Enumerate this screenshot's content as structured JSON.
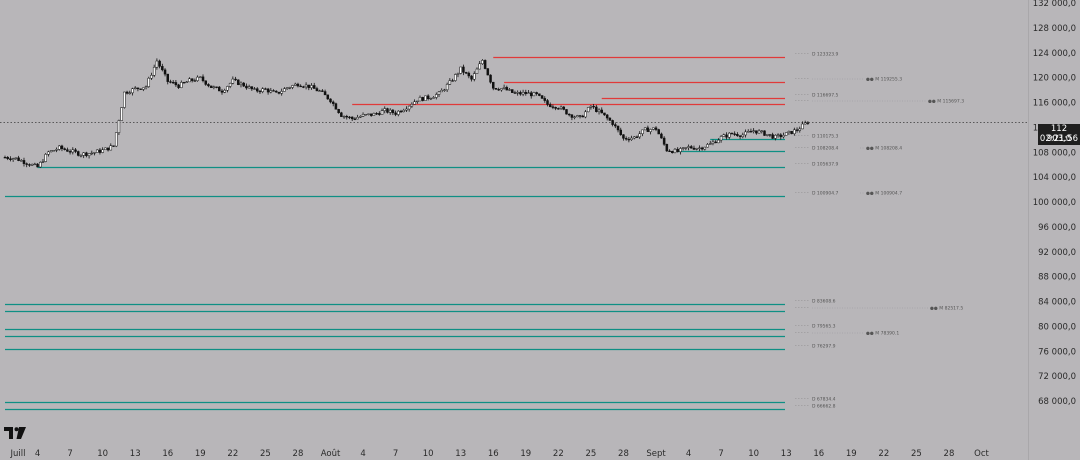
{
  "chart_data": {
    "type": "candlestick",
    "title": "",
    "xlabel": "",
    "ylabel": "",
    "ylim": [
      66000,
      133000
    ],
    "grid": false,
    "x_tick_labels": [
      "Juill",
      "4",
      "7",
      "10",
      "13",
      "16",
      "19",
      "22",
      "25",
      "28",
      "Août",
      "4",
      "7",
      "10",
      "13",
      "16",
      "19",
      "22",
      "25",
      "28",
      "Sept",
      "4",
      "7",
      "10",
      "13",
      "16",
      "19",
      "22",
      "25",
      "28",
      "Oct"
    ],
    "y_tick_labels": [
      "132 000,0",
      "128 000,0",
      "124 000,0",
      "120 000,0",
      "116 000,0",
      "112 000,0",
      "108 000,0",
      "104 000,0",
      "100 000,0",
      "96 000,0",
      "92 000,0",
      "88 000,0",
      "84 000,0",
      "80 000,0",
      "76 000,0",
      "72 000,0",
      "68 000,0"
    ],
    "y_ticks": [
      132000,
      128000,
      124000,
      120000,
      116000,
      112000,
      108000,
      104000,
      100000,
      96000,
      92000,
      88000,
      84000,
      80000,
      76000,
      72000,
      68000
    ],
    "current_price": {
      "price": "112 903,0",
      "countdown": "02:21:56",
      "value": 112903
    },
    "close_path": [
      [
        0,
        107200
      ],
      [
        1,
        107000
      ],
      [
        2,
        106300
      ],
      [
        3,
        105600
      ],
      [
        4,
        108000
      ],
      [
        5,
        108700
      ],
      [
        6,
        108200
      ],
      [
        7,
        107700
      ],
      [
        8,
        107900
      ],
      [
        9,
        108300
      ],
      [
        10,
        109000
      ],
      [
        11,
        117600
      ],
      [
        12,
        118200
      ],
      [
        13,
        118600
      ],
      [
        14,
        122700
      ],
      [
        15,
        119400
      ],
      [
        16,
        118700
      ],
      [
        17,
        119500
      ],
      [
        18,
        119900
      ],
      [
        19,
        118500
      ],
      [
        20,
        117900
      ],
      [
        21,
        119500
      ],
      [
        22,
        118800
      ],
      [
        23,
        117900
      ],
      [
        24,
        118100
      ],
      [
        25,
        117400
      ],
      [
        26,
        118400
      ],
      [
        27,
        119000
      ],
      [
        28,
        118600
      ],
      [
        29,
        117800
      ],
      [
        30,
        116400
      ],
      [
        31,
        114000
      ],
      [
        32,
        113400
      ],
      [
        33,
        113900
      ],
      [
        34,
        114100
      ],
      [
        35,
        114700
      ],
      [
        36,
        114300
      ],
      [
        37,
        115300
      ],
      [
        38,
        116500
      ],
      [
        39,
        116800
      ],
      [
        40,
        117400
      ],
      [
        41,
        119200
      ],
      [
        42,
        121400
      ],
      [
        43,
        119700
      ],
      [
        44,
        122800
      ],
      [
        45,
        118400
      ],
      [
        46,
        118200
      ],
      [
        47,
        117400
      ],
      [
        48,
        117500
      ],
      [
        49,
        117200
      ],
      [
        50,
        115700
      ],
      [
        51,
        115300
      ],
      [
        52,
        114100
      ],
      [
        53,
        113500
      ],
      [
        54,
        115400
      ],
      [
        55,
        114200
      ],
      [
        56,
        112700
      ],
      [
        57,
        110200
      ],
      [
        58,
        110400
      ],
      [
        59,
        111600
      ],
      [
        60,
        111800
      ],
      [
        61,
        108400
      ],
      [
        62,
        108100
      ],
      [
        63,
        108800
      ],
      [
        64,
        108700
      ],
      [
        65,
        109300
      ],
      [
        66,
        110400
      ],
      [
        67,
        111000
      ],
      [
        68,
        110800
      ],
      [
        69,
        111500
      ],
      [
        70,
        111000
      ],
      [
        71,
        110400
      ],
      [
        72,
        110900
      ],
      [
        73,
        111600
      ],
      [
        74,
        112903
      ]
    ],
    "levels": [
      {
        "price": 123323.9,
        "color": "#e03a3a",
        "start_day": 45,
        "label": "123323.9",
        "mark": ""
      },
      {
        "price": 119255.3,
        "color": "#e03a3a",
        "start_day": 46,
        "label": "",
        "mark": "119255.3"
      },
      {
        "price": 116697.5,
        "color": "#e03a3a",
        "start_day": 55,
        "label": "116697.5",
        "mark": ""
      },
      {
        "price": 115697.3,
        "color": "#e03a3a",
        "start_day": 32,
        "label": "",
        "mark": "115697.3"
      },
      {
        "price": 110175.3,
        "color": "#0f8f84",
        "start_day": 65,
        "label": "110175.3",
        "mark": ""
      },
      {
        "price": 108208.4,
        "color": "#0f8f84",
        "start_day": 62,
        "label": "108208.4",
        "mark": "108208.4"
      },
      {
        "price": 105637.9,
        "color": "#0f8f84",
        "start_day": 3,
        "label": "105637.9",
        "mark": ""
      },
      {
        "price": 100904.7,
        "color": "#0f8f84",
        "start_day": 0,
        "label": "100904.7",
        "mark": "100904.7"
      },
      {
        "price": 83608.6,
        "color": "#0f8f84",
        "start_day": 0,
        "label": "83608.6",
        "mark": ""
      },
      {
        "price": 82517.5,
        "color": "#0f8f84",
        "start_day": 0,
        "label": "",
        "mark": "82517.5"
      },
      {
        "price": 79565.3,
        "color": "#0f8f84",
        "start_day": 0,
        "label": "79565.3",
        "mark": ""
      },
      {
        "price": 78390.1,
        "color": "#0f8f84",
        "start_day": 0,
        "label": "",
        "mark": "78390.1"
      },
      {
        "price": 76297.9,
        "color": "#0f8f84",
        "start_day": 0,
        "label": "76297.9",
        "mark": ""
      },
      {
        "price": 67834.4,
        "color": "#0f8f84",
        "start_day": 0,
        "label": "67834.4",
        "mark": ""
      },
      {
        "price": 66662.8,
        "color": "#0f8f84",
        "start_day": 0,
        "label": "66662.8",
        "mark": ""
      }
    ]
  }
}
